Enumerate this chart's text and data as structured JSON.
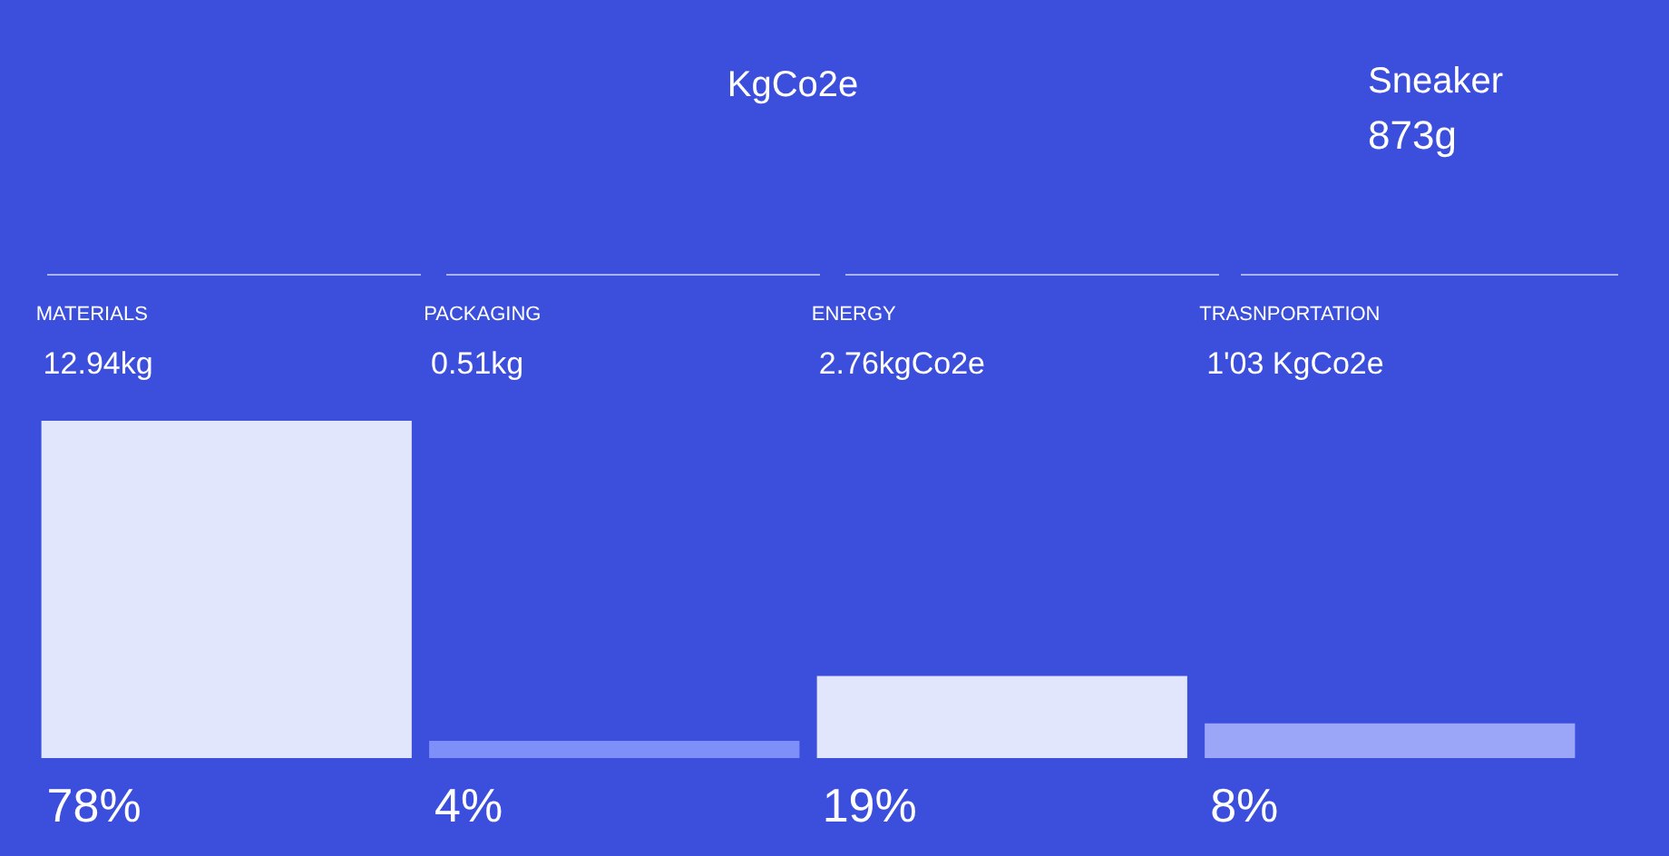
{
  "chart_data": {
    "type": "bar",
    "title": "KgCo2e",
    "categories": [
      "MATERIALS",
      "PACKAGING",
      "ENERGY",
      "TRASNPORTATION"
    ],
    "values": [
      78,
      4,
      19,
      8
    ],
    "colors": [
      "#e2e6fd",
      "#7f8ff9",
      "#e2e6fd",
      "#9ba6f9"
    ],
    "value_labels": [
      "78%",
      "4%",
      "19%",
      "8%"
    ],
    "annotations": [
      "Sneaker",
      "873g",
      "12.94kg",
      "0.51kg",
      "2.76kgCo2e",
      "1'03 KgCo2e"
    ],
    "grid": false,
    "legend": false
  }
}
